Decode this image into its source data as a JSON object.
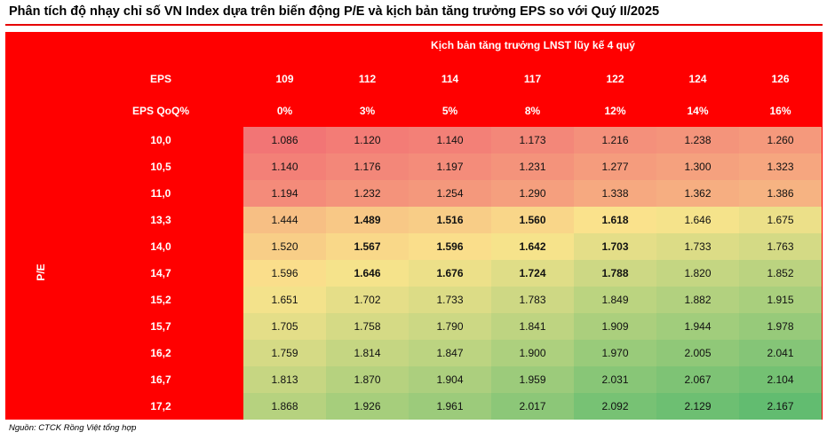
{
  "title": "Phân tích độ nhạy chỉ số VN Index dựa trên biến động P/E và kịch bản tăng trưởng EPS so với Quý II/2025",
  "colors": {
    "header_red": "#ff0000",
    "text_white": "#ffffff"
  },
  "table": {
    "super_header": "Kịch bản tăng trưởng LNST lũy kế 4 quý",
    "row_axis_label": "P/E",
    "eps_label": "EPS",
    "eps_values": [
      "109",
      "112",
      "114",
      "117",
      "122",
      "124",
      "126"
    ],
    "qoq_label": "EPS QoQ%",
    "qoq_values": [
      "0%",
      "3%",
      "5%",
      "8%",
      "12%",
      "14%",
      "16%"
    ],
    "rows": [
      {
        "pe": "10,0",
        "values": [
          "1.086",
          "1.120",
          "1.140",
          "1.173",
          "1.216",
          "1.238",
          "1.260"
        ],
        "bold": []
      },
      {
        "pe": "10,5",
        "values": [
          "1.140",
          "1.176",
          "1.197",
          "1.231",
          "1.277",
          "1.300",
          "1.323"
        ],
        "bold": []
      },
      {
        "pe": "11,0",
        "values": [
          "1.194",
          "1.232",
          "1.254",
          "1.290",
          "1.338",
          "1.362",
          "1.386"
        ],
        "bold": []
      },
      {
        "pe": "13,3",
        "values": [
          "1.444",
          "1.489",
          "1.516",
          "1.560",
          "1.618",
          "1.646",
          "1.675"
        ],
        "bold": [
          1,
          2,
          3,
          4
        ]
      },
      {
        "pe": "14,0",
        "values": [
          "1.520",
          "1.567",
          "1.596",
          "1.642",
          "1.703",
          "1.733",
          "1.763"
        ],
        "bold": [
          1,
          2,
          3,
          4
        ]
      },
      {
        "pe": "14,7",
        "values": [
          "1.596",
          "1.646",
          "1.676",
          "1.724",
          "1.788",
          "1.820",
          "1.852"
        ],
        "bold": [
          1,
          2,
          3,
          4
        ]
      },
      {
        "pe": "15,2",
        "values": [
          "1.651",
          "1.702",
          "1.733",
          "1.783",
          "1.849",
          "1.882",
          "1.915"
        ],
        "bold": []
      },
      {
        "pe": "15,7",
        "values": [
          "1.705",
          "1.758",
          "1.790",
          "1.841",
          "1.909",
          "1.944",
          "1.978"
        ],
        "bold": []
      },
      {
        "pe": "16,2",
        "values": [
          "1.759",
          "1.814",
          "1.847",
          "1.900",
          "1.970",
          "2.005",
          "2.041"
        ],
        "bold": []
      },
      {
        "pe": "16,7",
        "values": [
          "1.813",
          "1.870",
          "1.904",
          "1.959",
          "2.031",
          "2.067",
          "2.104"
        ],
        "bold": []
      },
      {
        "pe": "17,2",
        "values": [
          "1.868",
          "1.926",
          "1.961",
          "2.017",
          "2.092",
          "2.129",
          "2.167"
        ],
        "bold": []
      }
    ]
  },
  "source": "Nguồn:  CTCK Rồng Việt tổng hợp"
}
